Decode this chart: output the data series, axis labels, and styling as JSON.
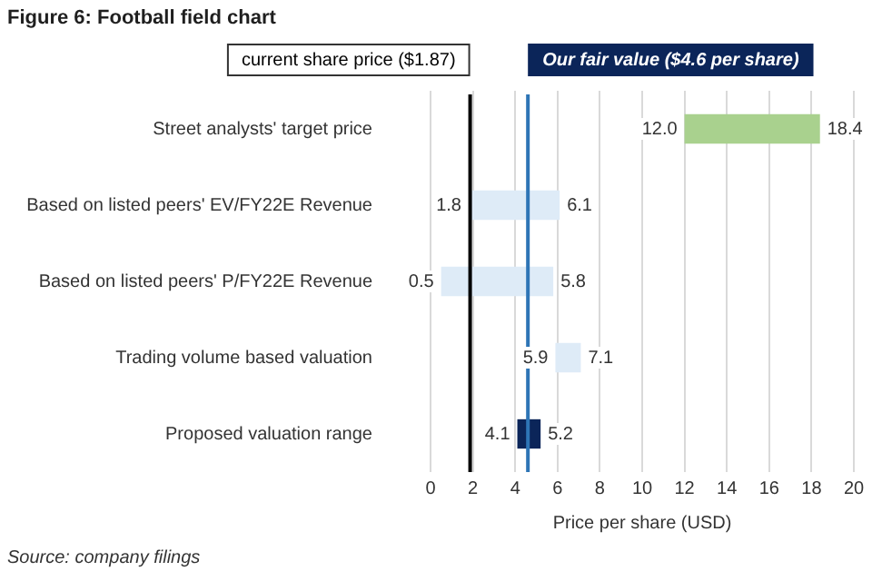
{
  "chart_data": {
    "type": "bar",
    "orientation": "horizontal",
    "title": "Figure 6: Football field chart",
    "categories": [
      "Street analysts' target price",
      "Based on listed peers' EV/FY22E Revenue",
      "Based on listed peers' P/FY22E Revenue",
      "Trading volume based valuation",
      "Proposed valuation range"
    ],
    "base": [
      12.0,
      1.8,
      0.5,
      5.9,
      4.1
    ],
    "values": [
      6.4,
      4.3,
      5.3,
      1.2,
      1.1
    ],
    "colors": [
      "#a9d18e",
      "#deebf7",
      "#deebf7",
      "#deebf7",
      "#0b2559"
    ],
    "xlim": [
      0,
      20
    ],
    "xticks": [
      0,
      2,
      4,
      6,
      8,
      10,
      12,
      14,
      16,
      18,
      20
    ],
    "xlabel": "Price per share (USD)",
    "grid": "x",
    "legend": false,
    "ref_lines": [
      {
        "axis": "x",
        "value": 1.87,
        "label": "current share price ($1.87)",
        "color": "#000000"
      },
      {
        "axis": "x",
        "value": 4.6,
        "label": "Our fair value ($4.6 per share)",
        "color": "#2e75b6"
      }
    ],
    "annotations": [
      {
        "text": "12.0",
        "x": 12.0,
        "y": "Street analysts' target price"
      },
      {
        "text": "18.4",
        "x": 18.4,
        "y": "Street analysts' target price"
      },
      {
        "text": "1.8",
        "x": 1.8,
        "y": "Based on listed peers' EV/FY22E Revenue"
      },
      {
        "text": "6.1",
        "x": 6.1,
        "y": "Based on listed peers' EV/FY22E Revenue"
      },
      {
        "text": "0.5",
        "x": 0.5,
        "y": "Based on listed peers' P/FY22E Revenue"
      },
      {
        "text": "5.8",
        "x": 5.8,
        "y": "Based on listed peers' P/FY22E Revenue"
      },
      {
        "text": "5.9",
        "x": 5.9,
        "y": "Trading volume based valuation"
      },
      {
        "text": "7.1",
        "x": 7.1,
        "y": "Trading volume based valuation"
      },
      {
        "text": "4.1",
        "x": 4.1,
        "y": "Proposed valuation range"
      },
      {
        "text": "5.2",
        "x": 5.2,
        "y": "Proposed valuation range"
      },
      "Source: company filings"
    ]
  }
}
